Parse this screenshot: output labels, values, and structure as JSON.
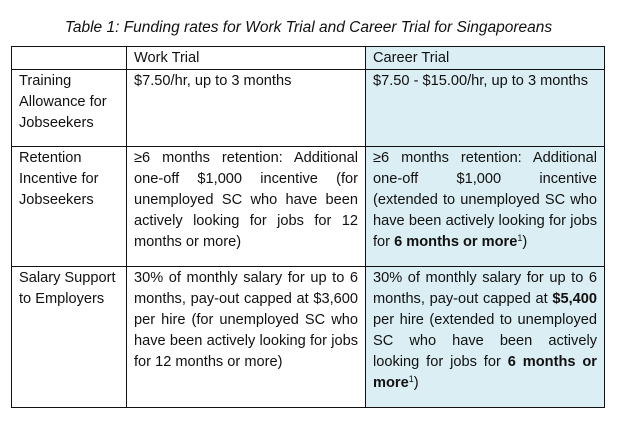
{
  "title": "Table 1: Funding rates for Work Trial and Career Trial for Singaporeans",
  "header": {
    "corner": "",
    "work_trial": "Work Trial",
    "career_trial": "Career Trial"
  },
  "rows": [
    {
      "label": "Training Allowance for Jobseekers",
      "work_trial": "$7.50/hr, up to 3 months",
      "career_trial": "$7.50 - $15.00/hr, up to 3 months"
    },
    {
      "label": "Retention Incentive for Jobseekers",
      "work_trial": "≥6 months retention: Additional one-off $1,000 incentive (for unemployed SC who have been actively looking for jobs for 12 months or more)",
      "career_trial": {
        "pre": "≥6 months retention: Additional one-off $1,000 incentive (extended to unemployed SC who have been actively looking for jobs for ",
        "bold": "6 months or more",
        "sup": "1",
        "post": ")"
      }
    },
    {
      "label": "Salary Support to Employers",
      "work_trial": "30% of monthly salary for up to 6 months, pay-out capped at $3,600 per hire (for unemployed SC who have been actively looking for jobs for 12 months or more)",
      "career_trial": {
        "pre": "30% of monthly salary for up to 6 months, pay-out capped at ",
        "bold1": "$5,400",
        "mid": " per hire (extended to unemployed SC who have been actively looking for jobs for ",
        "bold": "6 months or more",
        "sup": "1",
        "post": ")"
      }
    }
  ],
  "colors": {
    "career_column_bg": "#daeef3",
    "border": "#111111"
  }
}
